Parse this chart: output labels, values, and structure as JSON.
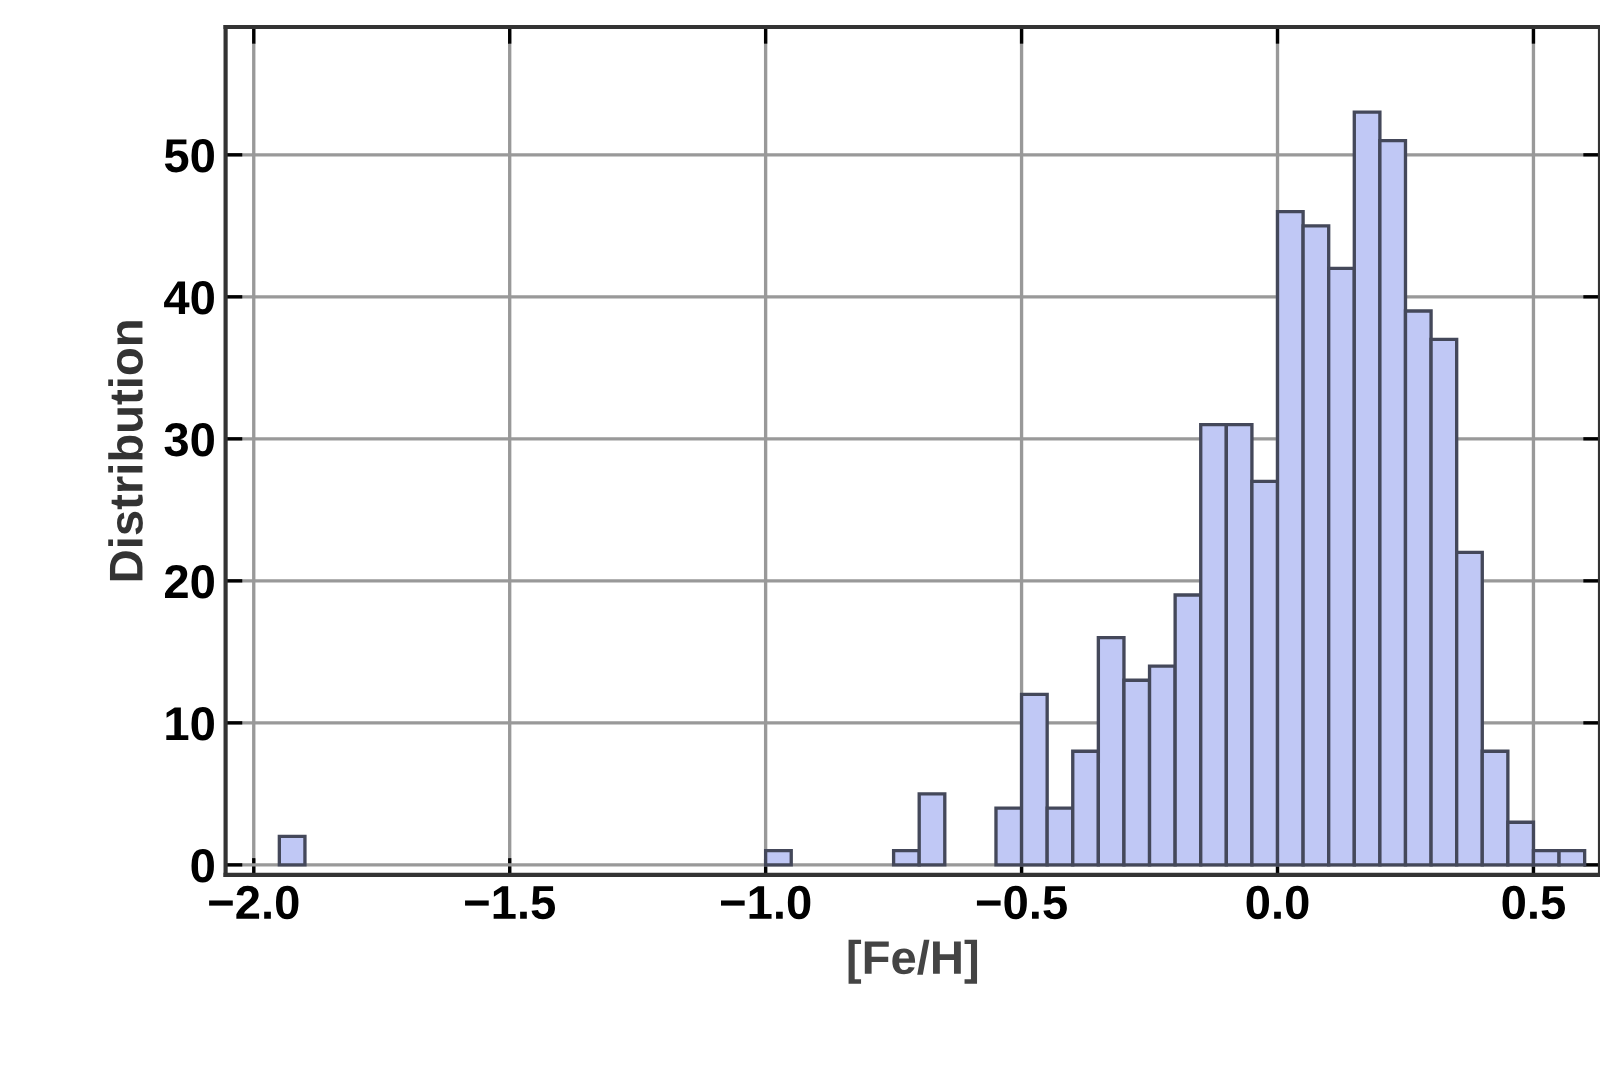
{
  "chart_data": {
    "type": "histogram",
    "xlabel": "[Fe/H]",
    "ylabel": "Distribution",
    "color": "#c0c8f5",
    "bins": [
      -1.95,
      -1.9,
      -1.85,
      -1.8,
      -1.75,
      -1.7,
      -1.65,
      -1.6,
      -1.55,
      -1.5,
      -1.45,
      -1.4,
      -1.35,
      -1.3,
      -1.25,
      -1.2,
      -1.15,
      -1.1,
      -1.05,
      -1.0,
      -0.95,
      -0.9,
      -0.85,
      -0.8,
      -0.75,
      -0.7,
      -0.65,
      -0.6,
      -0.55,
      -0.5,
      -0.45,
      -0.4,
      -0.35,
      -0.3,
      -0.25,
      -0.2,
      -0.15,
      -0.1,
      -0.05,
      0.0,
      0.05,
      0.1,
      0.15,
      0.2,
      0.25,
      0.3,
      0.35,
      0.4,
      0.45,
      0.5,
      0.55,
      0.6
    ],
    "values": [
      2,
      0,
      0,
      0,
      0,
      0,
      0,
      0,
      0,
      0,
      0,
      0,
      0,
      0,
      0,
      0,
      0,
      0,
      0,
      1,
      0,
      0,
      0,
      0,
      1,
      5,
      0,
      0,
      4,
      12,
      4,
      8,
      16,
      13,
      14,
      19,
      31,
      31,
      27,
      46,
      45,
      42,
      53,
      51,
      39,
      37,
      22,
      8,
      3,
      1,
      1
    ],
    "xlim": [
      -2.055,
      0.63
    ],
    "ylim": [
      -0.7,
      59
    ],
    "xticks": [
      {
        "value": -2.0,
        "label": "−2.0"
      },
      {
        "value": -1.5,
        "label": "−1.5"
      },
      {
        "value": -1.0,
        "label": "−1.0"
      },
      {
        "value": -0.5,
        "label": "−0.5"
      },
      {
        "value": 0.0,
        "label": "0.0"
      },
      {
        "value": 0.5,
        "label": "0.5"
      }
    ],
    "yticks": [
      0,
      10,
      20,
      30,
      40,
      50
    ],
    "grid": true
  }
}
